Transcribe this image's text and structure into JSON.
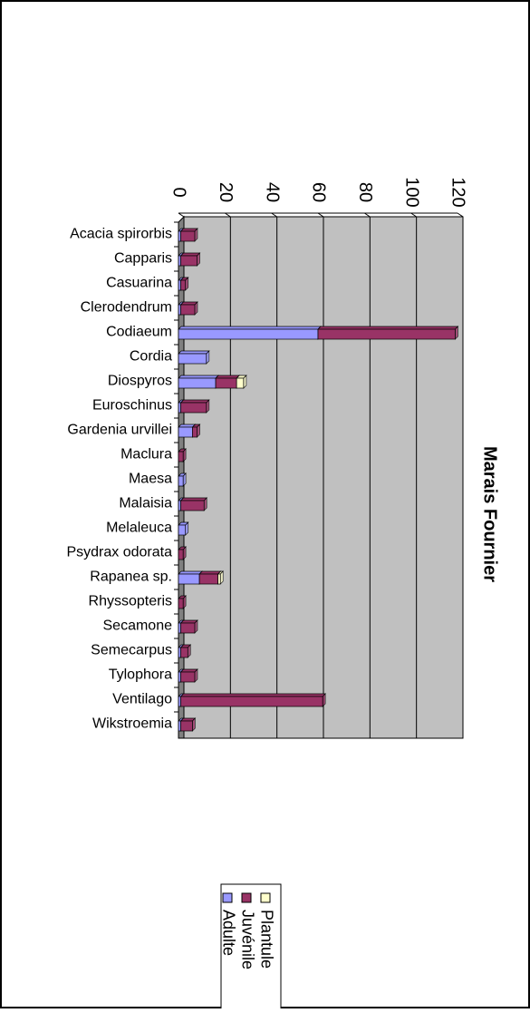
{
  "chart_data": {
    "type": "bar",
    "stacked": true,
    "title": "Marais Fournier",
    "categories": [
      "Acacia spirorbis",
      "Capparis",
      "Casuarina",
      "Clerodendrum",
      "Codiaeum",
      "Cordia",
      "Diospyros",
      "Euroschinus",
      "Gardenia urvillei",
      "Maclura",
      "Maesa",
      "Malaisia",
      "Melaleuca",
      "Psydrax odorata",
      "Rapanea sp.",
      "Rhyssopteris",
      "Secamone",
      "Semecarpus",
      "Tylophora",
      "Ventilago",
      "Wikstroemia"
    ],
    "series": [
      {
        "name": "Adulte",
        "color": "#9999ff",
        "values": [
          1,
          1,
          1,
          1,
          60,
          12,
          16,
          1,
          6,
          0,
          2,
          1,
          3,
          0,
          9,
          0,
          1,
          1,
          1,
          1,
          1
        ]
      },
      {
        "name": "Juvénile",
        "color": "#993366",
        "values": [
          6,
          7,
          2,
          6,
          59,
          0,
          9,
          11,
          2,
          2,
          0,
          10,
          0,
          2,
          8,
          2,
          6,
          3,
          6,
          61,
          5
        ]
      },
      {
        "name": "Plantule",
        "color": "#ffffcc",
        "values": [
          0,
          0,
          0,
          0,
          0,
          0,
          3,
          0,
          0,
          0,
          0,
          0,
          0,
          0,
          1,
          0,
          0,
          0,
          0,
          0,
          0
        ]
      }
    ],
    "xlim": [
      0,
      120
    ],
    "xticks": [
      0,
      20,
      40,
      60,
      80,
      100,
      120
    ],
    "grid": true,
    "wall_color": "#c0c0c0"
  }
}
